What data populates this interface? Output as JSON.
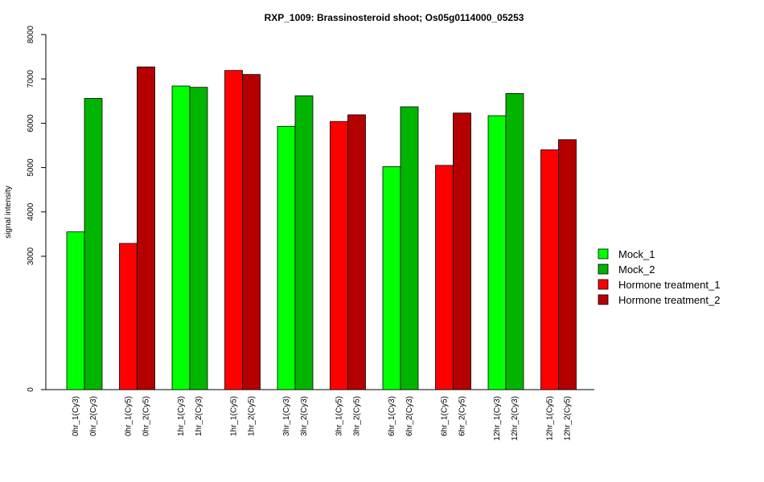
{
  "chart_data": {
    "type": "bar",
    "title": "RXP_1009: Brassinosteroid shoot; Os05g0114000_05253",
    "xlabel": "",
    "ylabel": "signal intensity",
    "y_ticks": [
      "0",
      "3000",
      "4000",
      "5000",
      "6000",
      "7000",
      "8000"
    ],
    "categories": [
      "0hr_1(Cy3)",
      "0hr_2(Cy3)",
      "0hr_1(Cy5)",
      "0hr_2(Cy5)",
      "1hr_1(Cy3)",
      "1hr_2(Cy3)",
      "1hr_1(Cy5)",
      "1hr_2(Cy5)",
      "3hr_1(Cy3)",
      "3hr_2(Cy3)",
      "3hr_1(Cy5)",
      "3hr_2(Cy5)",
      "6hr_1(Cy3)",
      "6hr_2(Cy3)",
      "6hr_1(Cy5)",
      "6hr_2(Cy5)",
      "12hr_1(Cy3)",
      "12hr_2(Cy3)",
      "12hr_1(Cy5)",
      "12hr_2(Cy5)"
    ],
    "values": [
      3550,
      6560,
      3290,
      7270,
      6840,
      6810,
      7190,
      7100,
      5930,
      6620,
      6040,
      6190,
      5020,
      6370,
      5050,
      6230,
      6170,
      6670,
      5400,
      5630
    ],
    "bar_series": [
      0,
      1,
      2,
      3,
      0,
      1,
      2,
      3,
      0,
      1,
      2,
      3,
      0,
      1,
      2,
      3,
      0,
      1,
      2,
      3
    ],
    "series": [
      {
        "name": "Mock_1",
        "color": "#00ff00"
      },
      {
        "name": "Mock_2",
        "color": "#00b400"
      },
      {
        "name": "Hormone treatment_1",
        "color": "#ff0000"
      },
      {
        "name": "Hormone treatment_2",
        "color": "#b40000"
      }
    ],
    "legend_position": "right",
    "grid": false
  }
}
